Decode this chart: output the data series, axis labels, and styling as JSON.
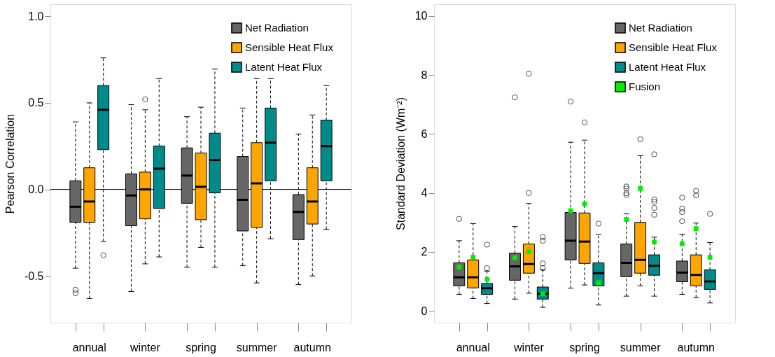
{
  "chart_data": [
    {
      "type": "box",
      "ylabel": "Pearson Correlation",
      "categories": [
        "annual",
        "winter",
        "spring",
        "summer",
        "autumn"
      ],
      "ylim": [
        -0.77,
        1.07
      ],
      "yticks": [
        {
          "value": -0.5,
          "label": "-0.5"
        },
        {
          "value": 0,
          "label": "0.0"
        },
        {
          "value": 0.5,
          "label": "0.5"
        },
        {
          "value": 1,
          "label": "1.0"
        }
      ],
      "legend": "top right",
      "ref_lines": [
        {
          "axis": "y",
          "value": 0,
          "color": "#000000"
        }
      ],
      "series": [
        {
          "name": "Net Radiation",
          "color": "#666666",
          "boxes": [
            {
              "low": -0.455,
              "q1": -0.19,
              "median": -0.1,
              "q3": 0.05,
              "high": 0.39,
              "outliers": [
                -0.58,
                -0.6
              ]
            },
            {
              "low": -0.59,
              "q1": -0.21,
              "median": -0.035,
              "q3": 0.09,
              "high": 0.49
            },
            {
              "low": -0.45,
              "q1": -0.08,
              "median": 0.08,
              "q3": 0.24,
              "high": 0.42
            },
            {
              "low": -0.44,
              "q1": -0.24,
              "median": -0.06,
              "q3": 0.19,
              "high": 0.47
            },
            {
              "low": -0.55,
              "q1": -0.29,
              "median": -0.13,
              "q3": -0.03,
              "high": 0.32
            }
          ]
        },
        {
          "name": "Sensible Heat Flux",
          "color": "#ffa500",
          "boxes": [
            {
              "low": -0.63,
              "q1": -0.19,
              "median": -0.07,
              "q3": 0.125,
              "high": 0.5
            },
            {
              "low": -0.43,
              "q1": -0.17,
              "median": 0.0,
              "q3": 0.1,
              "high": 0.46,
              "outliers": [
                0.52
              ]
            },
            {
              "low": -0.335,
              "q1": -0.175,
              "median": 0.015,
              "q3": 0.21,
              "high": 0.475
            },
            {
              "low": -0.54,
              "q1": -0.22,
              "median": 0.035,
              "q3": 0.27,
              "high": 0.64
            },
            {
              "low": -0.5,
              "q1": -0.2,
              "median": -0.07,
              "q3": 0.125,
              "high": 0.43
            }
          ]
        },
        {
          "name": "Latent Heat Flux",
          "color": "#008b8b",
          "boxes": [
            {
              "low": -0.3,
              "q1": 0.23,
              "median": 0.46,
              "q3": 0.6,
              "high": 0.76,
              "outliers": [
                -0.38
              ]
            },
            {
              "low": -0.39,
              "q1": -0.11,
              "median": 0.12,
              "q3": 0.25,
              "high": 0.64
            },
            {
              "low": -0.45,
              "q1": -0.02,
              "median": 0.17,
              "q3": 0.325,
              "high": 0.695
            },
            {
              "low": -0.285,
              "q1": 0.05,
              "median": 0.27,
              "q3": 0.47,
              "high": 0.64
            },
            {
              "low": -0.23,
              "q1": 0.05,
              "median": 0.25,
              "q3": 0.4,
              "high": 0.6
            }
          ]
        }
      ]
    },
    {
      "type": "box",
      "ylabel": "Standard Deviation (Wm⁻²)",
      "categories": [
        "annual",
        "winter",
        "spring",
        "summer",
        "autumn"
      ],
      "ylim": [
        -0.4,
        10.4
      ],
      "yticks": [
        0,
        2,
        4,
        6,
        8,
        10
      ],
      "legend": "top right",
      "series": [
        {
          "name": "Net Radiation",
          "color": "#666666",
          "boxes": [
            {
              "low": 0.56,
              "q1": 0.85,
              "median": 1.14,
              "q3": 1.63,
              "high": 2.38,
              "outliers": [
                3.12
              ]
            },
            {
              "low": 0.4,
              "q1": 1.04,
              "median": 1.51,
              "q3": 1.96,
              "high": 2.86,
              "outliers": [
                7.24
              ]
            },
            {
              "low": 0.77,
              "q1": 1.73,
              "median": 2.38,
              "q3": 3.34,
              "high": 5.72,
              "outliers": [
                7.1
              ]
            },
            {
              "low": 0.5,
              "q1": 1.16,
              "median": 1.63,
              "q3": 2.27,
              "high": 3.29,
              "outliers": [
                4.22,
                4.15,
                3.99,
                3.93
              ]
            },
            {
              "low": 0.56,
              "q1": 0.99,
              "median": 1.3,
              "q3": 1.69,
              "high": 2.6,
              "outliers": [
                3.84,
                3.47,
                3.35,
                3.04
              ]
            }
          ]
        },
        {
          "name": "Sensible Heat Flux",
          "color": "#ffa500",
          "boxes": [
            {
              "low": 0.42,
              "q1": 0.78,
              "median": 1.14,
              "q3": 1.73,
              "high": 2.96
            },
            {
              "low": 0.6,
              "q1": 1.28,
              "median": 1.59,
              "q3": 2.27,
              "high": 3.64,
              "outliers": [
                4.0,
                8.04
              ]
            },
            {
              "low": 0.88,
              "q1": 1.61,
              "median": 2.35,
              "q3": 3.32,
              "high": 5.79,
              "outliers": [
                6.39
              ]
            },
            {
              "low": 0.85,
              "q1": 1.28,
              "median": 1.73,
              "q3": 3.0,
              "high": 5.26,
              "outliers": [
                5.82
              ]
            },
            {
              "low": 0.45,
              "q1": 0.85,
              "median": 1.22,
              "q3": 1.9,
              "high": 2.98,
              "outliers": [
                4.07,
                3.92
              ]
            }
          ]
        },
        {
          "name": "Latent Heat Flux",
          "color": "#008b8b",
          "boxes": [
            {
              "low": 0.25,
              "q1": 0.56,
              "median": 0.77,
              "q3": 0.93,
              "high": 1.35,
              "outliers": [
                2.25,
                1.45
              ]
            },
            {
              "low": 0.12,
              "q1": 0.4,
              "median": 0.58,
              "q3": 0.81,
              "high": 1.4,
              "outliers": [
                2.5,
                2.38,
                1.61,
                1.45
              ]
            },
            {
              "low": 0.2,
              "q1": 0.85,
              "median": 1.28,
              "q3": 1.63,
              "high": 2.6,
              "outliers": [
                2.96
              ]
            },
            {
              "low": 0.5,
              "q1": 1.21,
              "median": 1.53,
              "q3": 1.9,
              "high": 2.5,
              "outliers": [
                5.31,
                3.78,
                3.7,
                3.49,
                3.26
              ]
            },
            {
              "low": 0.27,
              "q1": 0.73,
              "median": 1.0,
              "q3": 1.39,
              "high": 2.32,
              "outliers": [
                3.29
              ]
            }
          ]
        },
        {
          "name": "Fusion",
          "type": "scatter",
          "color": "#00ee00",
          "marker": "square",
          "x": [
            "annual",
            "annual",
            "annual",
            "winter",
            "winter",
            "winter",
            "spring",
            "spring",
            "spring",
            "summer",
            "summer",
            "summer",
            "autumn",
            "autumn",
            "autumn"
          ],
          "values": [
            1.49,
            1.82,
            1.07,
            1.8,
            2.01,
            0.58,
            3.4,
            3.63,
            0.96,
            3.1,
            4.15,
            2.34,
            2.28,
            2.79,
            1.82
          ]
        }
      ]
    }
  ]
}
